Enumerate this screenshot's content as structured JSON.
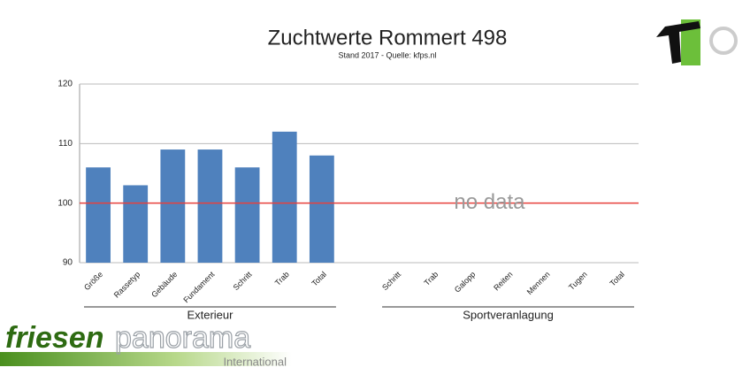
{
  "chart_data": {
    "type": "bar",
    "title": "Zuchtwerte Rommert 498",
    "subtitle": "Stand 2017 - Quelle: kfps.nl",
    "categories": [
      "Größe",
      "Rassetyp",
      "Gebäude",
      "Fundament",
      "Schritt",
      "Trab",
      "Total",
      null,
      "Schritt",
      "Trab",
      "Galopp",
      "Reiten",
      "Mennen",
      "Tugen",
      "Total"
    ],
    "values": [
      106,
      103,
      109,
      109,
      106,
      112,
      108,
      null,
      null,
      null,
      null,
      null,
      null,
      null,
      null
    ],
    "color": "#4f81bd",
    "ylim": [
      90,
      120
    ],
    "yticks": [
      90,
      100,
      110,
      120
    ],
    "grid": true,
    "reference_line": {
      "value": 100,
      "color": "#e8413c"
    },
    "annotation": "no data",
    "groups": [
      "Exterieur",
      "Sportveranlagung"
    ]
  },
  "logo": {
    "part1": "friesen",
    "part2": "panorama",
    "sub": "International"
  }
}
